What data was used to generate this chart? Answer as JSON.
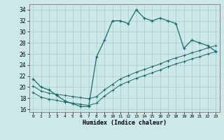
{
  "xlabel": "Humidex (Indice chaleur)",
  "bg_color": "#cce8e8",
  "line_color": "#1a6b6b",
  "grid_color": "#aacccc",
  "xlim": [
    -0.5,
    23.5
  ],
  "ylim": [
    15.5,
    35.0
  ],
  "xticks": [
    0,
    1,
    2,
    3,
    4,
    5,
    6,
    7,
    8,
    9,
    10,
    11,
    12,
    13,
    14,
    15,
    16,
    17,
    18,
    19,
    20,
    21,
    22,
    23
  ],
  "yticks": [
    16,
    18,
    20,
    22,
    24,
    26,
    28,
    30,
    32,
    34
  ],
  "main_x": [
    0,
    1,
    2,
    3,
    4,
    5,
    6,
    7,
    8,
    9,
    10,
    11,
    12,
    13,
    14,
    15,
    16,
    17,
    18,
    19,
    20,
    21,
    22,
    23
  ],
  "main_y": [
    21.5,
    20.0,
    19.5,
    18.5,
    17.5,
    17.0,
    16.5,
    16.5,
    25.5,
    28.5,
    32.0,
    32.0,
    31.5,
    34.0,
    32.5,
    32.0,
    32.5,
    32.0,
    31.5,
    27.0,
    28.5,
    28.0,
    27.5,
    26.5
  ],
  "line2_x": [
    0,
    1,
    2,
    3,
    4,
    5,
    6,
    7,
    8,
    9,
    10,
    11,
    12,
    13,
    14,
    15,
    16,
    17,
    18,
    19,
    20,
    21,
    22,
    23
  ],
  "line2_y": [
    20.2,
    19.3,
    18.9,
    18.7,
    18.5,
    18.3,
    18.1,
    17.9,
    18.3,
    19.5,
    20.5,
    21.5,
    22.1,
    22.7,
    23.2,
    23.7,
    24.2,
    24.8,
    25.3,
    25.7,
    26.2,
    26.6,
    27.1,
    27.5
  ],
  "line3_x": [
    0,
    1,
    2,
    3,
    4,
    5,
    6,
    7,
    8,
    9,
    10,
    11,
    12,
    13,
    14,
    15,
    16,
    17,
    18,
    19,
    20,
    21,
    22,
    23
  ],
  "line3_y": [
    19.0,
    18.2,
    17.8,
    17.6,
    17.3,
    17.1,
    16.9,
    16.7,
    17.1,
    18.4,
    19.4,
    20.4,
    21.0,
    21.6,
    22.1,
    22.6,
    23.1,
    23.7,
    24.2,
    24.6,
    25.1,
    25.5,
    26.0,
    26.4
  ]
}
